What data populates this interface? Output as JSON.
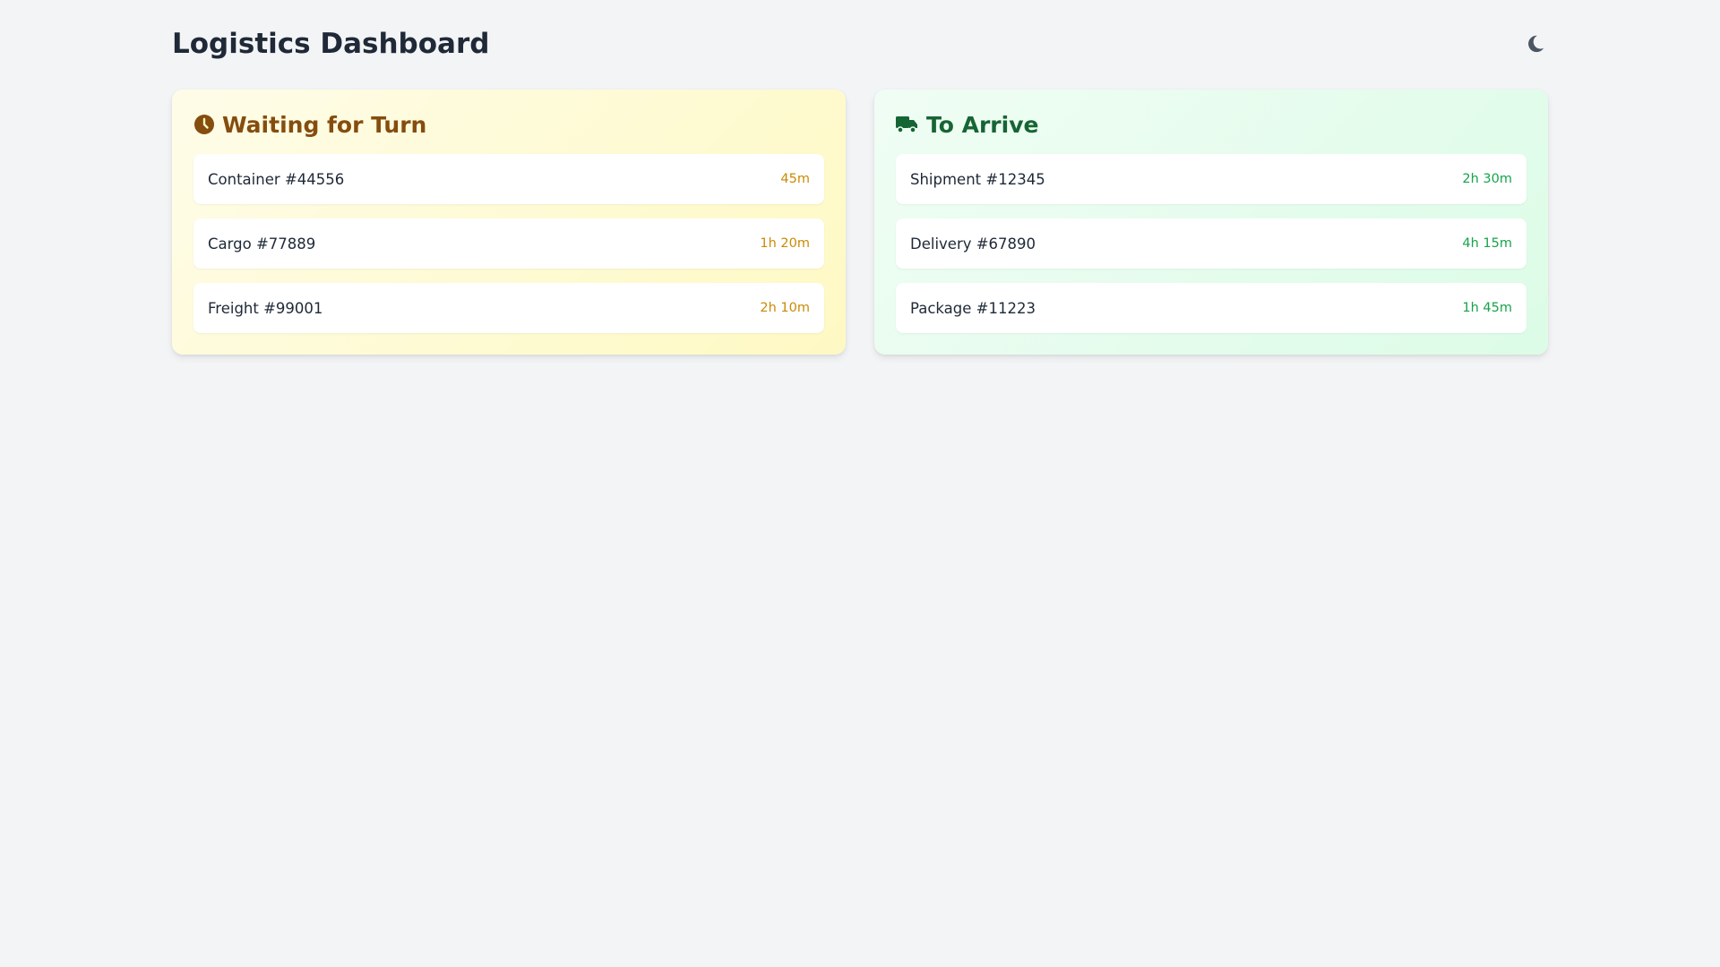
{
  "header": {
    "title": "Logistics Dashboard",
    "theme_toggle_icon": "moon-icon"
  },
  "colors": {
    "waiting_title": "#854d0e",
    "waiting_time": "#ca8a04",
    "arrive_title": "#166534",
    "arrive_time": "#16a34a"
  },
  "waiting": {
    "icon": "clock-icon",
    "title": "Waiting for Turn",
    "items": [
      {
        "name": "Container #44556",
        "time": "45m"
      },
      {
        "name": "Cargo #77889",
        "time": "1h 20m"
      },
      {
        "name": "Freight #99001",
        "time": "2h 10m"
      }
    ]
  },
  "arrive": {
    "icon": "truck-icon",
    "title": "To Arrive",
    "items": [
      {
        "name": "Shipment #12345",
        "time": "2h 30m"
      },
      {
        "name": "Delivery #67890",
        "time": "4h 15m"
      },
      {
        "name": "Package #11223",
        "time": "1h 45m"
      }
    ]
  }
}
